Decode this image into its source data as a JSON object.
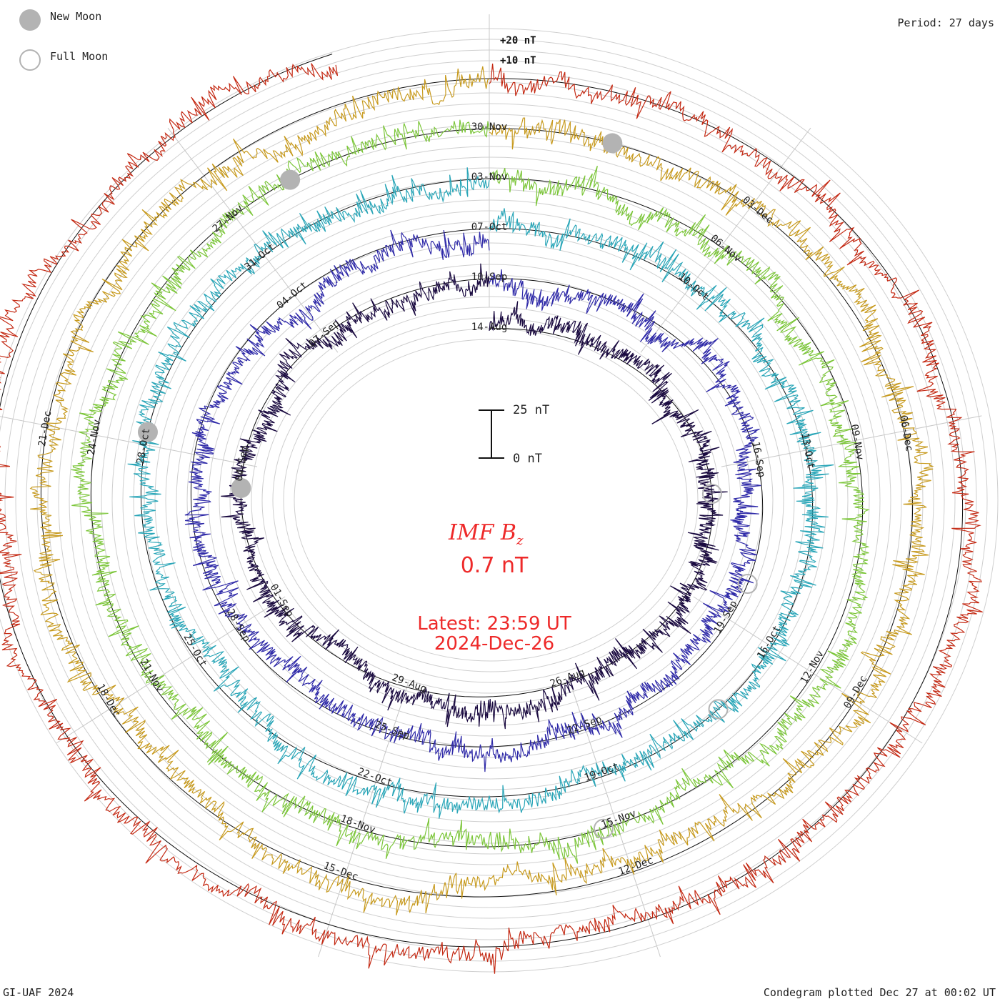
{
  "legend": {
    "new_moon_label": "New Moon",
    "full_moon_label": "Full Moon",
    "new_moon_color": "#b3b3b3",
    "full_moon_color": "#b3b3b3"
  },
  "period_label": "Period: 27 days",
  "credit": "GI-UAF 2024",
  "plotted_label": "Condegram plotted Dec 27 at 00:02 UT",
  "scale_bar": {
    "top_label": "25 nT",
    "bottom_label": "0 nT"
  },
  "title": {
    "variable": "IMF B",
    "subscript": "z",
    "value": "0.7 nT"
  },
  "latest": {
    "line1": "Latest: 23:59 UT",
    "line2": "2024-Dec-26"
  },
  "accent_color": "#ee2a2a",
  "chart_data": {
    "type": "line",
    "title": "IMF Bz",
    "current_value_nT": 0.7,
    "period_days": 27,
    "grid": true,
    "ring_scale_labels": [
      "+20 nT",
      "+10 nT"
    ],
    "rings": [
      {
        "name": "Aug-Sep",
        "color": "#1a0a40",
        "date_labels": [
          {
            "text": "14-Aug",
            "day": 0
          },
          {
            "text": "26-Aug",
            "day": 12
          },
          {
            "text": "29-Aug",
            "day": 15
          },
          {
            "text": "01-Sep",
            "day": 18
          },
          {
            "text": "04-Sep",
            "day": 21
          },
          {
            "text": "07-Sep",
            "day": 24
          }
        ],
        "amplitude_nT": 9
      },
      {
        "name": "Sep",
        "color": "#2f2aa8",
        "date_labels": [
          {
            "text": "10-Sep",
            "day": 0
          },
          {
            "text": "16-Sep",
            "day": 6
          },
          {
            "text": "19-Sep",
            "day": 9
          },
          {
            "text": "22-Sep",
            "day": 12
          },
          {
            "text": "25-Sep",
            "day": 15
          },
          {
            "text": "28-Sep",
            "day": 18
          },
          {
            "text": "04-Oct",
            "day": 24
          }
        ],
        "amplitude_nT": 9
      },
      {
        "name": "Oct",
        "color": "#2aa6b8",
        "date_labels": [
          {
            "text": "07-Oct",
            "day": 0
          },
          {
            "text": "10-Oct",
            "day": 3
          },
          {
            "text": "13-Oct",
            "day": 6
          },
          {
            "text": "16-Oct",
            "day": 9
          },
          {
            "text": "19-Oct",
            "day": 12
          },
          {
            "text": "22-Oct",
            "day": 15
          },
          {
            "text": "25-Oct",
            "day": 18
          },
          {
            "text": "28-Oct",
            "day": 21
          },
          {
            "text": "31-Oct",
            "day": 24
          }
        ],
        "amplitude_nT": 9
      },
      {
        "name": "Nov",
        "color": "#7cc63a",
        "date_labels": [
          {
            "text": "03-Nov",
            "day": 0
          },
          {
            "text": "06-Nov",
            "day": 3
          },
          {
            "text": "09-Nov",
            "day": 6
          },
          {
            "text": "12-Nov",
            "day": 9
          },
          {
            "text": "15-Nov",
            "day": 12
          },
          {
            "text": "18-Nov",
            "day": 15
          },
          {
            "text": "21-Nov",
            "day": 18
          },
          {
            "text": "24-Nov",
            "day": 21
          },
          {
            "text": "27-Nov",
            "day": 24
          }
        ],
        "amplitude_nT": 9
      },
      {
        "name": "Dec-A",
        "color": "#c79a1e",
        "date_labels": [
          {
            "text": "30-Nov",
            "day": 0
          },
          {
            "text": "03-Dec",
            "day": 3
          },
          {
            "text": "06-Dec",
            "day": 6
          },
          {
            "text": "09-Dec",
            "day": 9
          },
          {
            "text": "12-Dec",
            "day": 12
          },
          {
            "text": "15-Dec",
            "day": 15
          },
          {
            "text": "18-Dec",
            "day": 18
          },
          {
            "text": "21-Dec",
            "day": 21
          }
        ],
        "amplitude_nT": 9
      },
      {
        "name": "Dec-B",
        "color": "#c42a14",
        "date_labels": [],
        "amplitude_nT": 9,
        "partial_fraction": 0.95
      }
    ],
    "moons": [
      {
        "phase": "new",
        "ring": 0,
        "day": 20.5
      },
      {
        "phase": "full",
        "ring": 0,
        "day": 6.6
      },
      {
        "phase": "new",
        "ring": 2,
        "day": 21.2
      },
      {
        "phase": "full",
        "ring": 1,
        "day": 8.3
      },
      {
        "phase": "new",
        "ring": 3,
        "day": 24.8
      },
      {
        "phase": "full",
        "ring": 2,
        "day": 10.2
      },
      {
        "phase": "new",
        "ring": 4,
        "day": 1.3
      },
      {
        "phase": "full",
        "ring": 3,
        "day": 12.2
      }
    ]
  }
}
